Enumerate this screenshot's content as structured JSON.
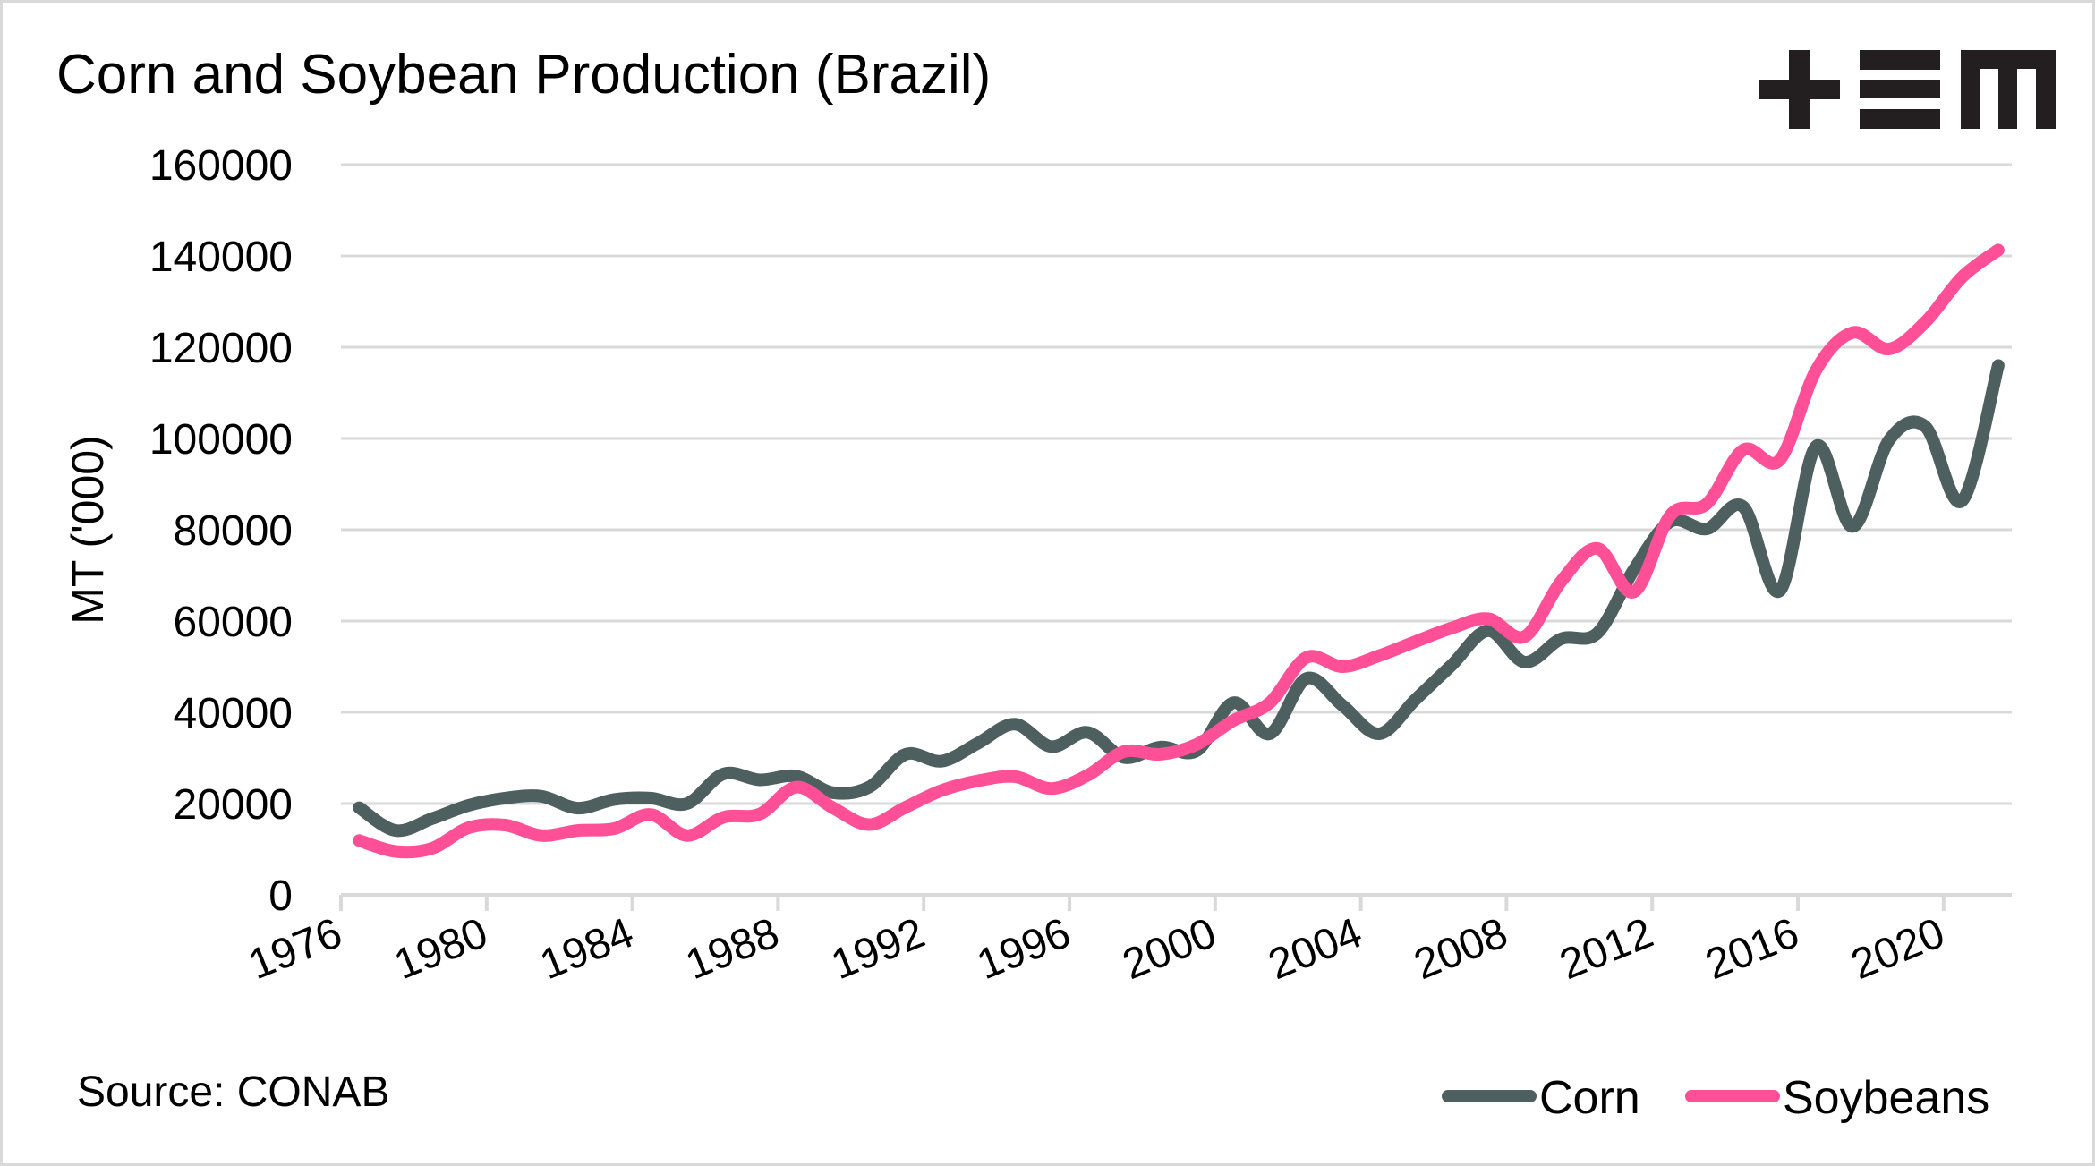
{
  "chart_data": {
    "type": "line",
    "title": "Corn and Soybean Production (Brazil)",
    "xlabel": "",
    "ylabel": "MT ('000)",
    "ylim": [
      0,
      160000
    ],
    "yticks": [
      0,
      20000,
      40000,
      60000,
      80000,
      100000,
      120000,
      140000,
      160000
    ],
    "ytick_labels": [
      "0",
      "20000",
      "40000",
      "60000",
      "80000",
      "100000",
      "120000",
      "140000",
      "160000"
    ],
    "x": [
      1976,
      1977,
      1978,
      1979,
      1980,
      1981,
      1982,
      1983,
      1984,
      1985,
      1986,
      1987,
      1988,
      1989,
      1990,
      1991,
      1992,
      1993,
      1994,
      1995,
      1996,
      1997,
      1998,
      1999,
      2000,
      2001,
      2002,
      2003,
      2004,
      2005,
      2006,
      2007,
      2008,
      2009,
      2010,
      2011,
      2012,
      2013,
      2014,
      2015,
      2016,
      2017,
      2018,
      2019,
      2020,
      2021
    ],
    "xtick_labels": [
      "1976",
      "1980",
      "1984",
      "1988",
      "1992",
      "1996",
      "2000",
      "2004",
      "2008",
      "2012",
      "2016",
      "2020"
    ],
    "grid": true,
    "legend_position": "bottom-right",
    "series": [
      {
        "name": "Corn",
        "color": "#4d5f5f",
        "values": [
          19100,
          14100,
          16700,
          19600,
          21200,
          21600,
          19000,
          20900,
          21200,
          20000,
          26500,
          25200,
          26000,
          22400,
          23600,
          30800,
          29300,
          33300,
          37400,
          32500,
          35600,
          30100,
          32400,
          31600,
          42100,
          35300,
          47400,
          41500,
          35300,
          42800,
          50400,
          57900,
          51000,
          56100,
          57400,
          71300,
          81800,
          80200,
          85000,
          66600,
          98300,
          80700,
          99600,
          102600,
          86300,
          116000
        ]
      },
      {
        "name": "Soybeans",
        "color": "#ff4f97",
        "values": [
          11900,
          9500,
          10200,
          14700,
          15300,
          13000,
          14100,
          14500,
          17600,
          13000,
          17000,
          17700,
          23600,
          19100,
          15400,
          19200,
          22900,
          25000,
          25900,
          23300,
          26200,
          31400,
          30800,
          33000,
          38200,
          42100,
          52000,
          50000,
          52400,
          55500,
          58500,
          60500,
          56600,
          68700,
          75900,
          66400,
          83200,
          85700,
          97500,
          95300,
          115000,
          123200,
          119600,
          125500,
          135300,
          141300
        ]
      }
    ]
  },
  "source": "Source: CONAB",
  "logo": "+EM"
}
